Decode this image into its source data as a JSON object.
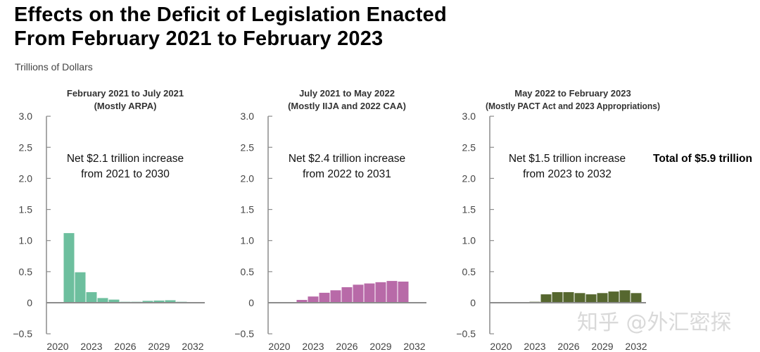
{
  "title_line1": "Effects on the Deficit of Legislation Enacted",
  "title_line2": "From February 2021 to February 2023",
  "units": "Trillions of Dollars",
  "watermark": "知乎 @外汇密探",
  "chart_data": [
    {
      "type": "bar",
      "title": "February 2021 to July 2021",
      "subtitle": "(Mostly ARPA)",
      "annotation_line1": "Net $2.1 trillion increase",
      "annotation_line2": "from 2021 to 2030",
      "color": "#6dbf9e",
      "ylabel": "Trillions of Dollars",
      "ylim": [
        -0.5,
        3.0
      ],
      "yticks": [
        3.0,
        2.5,
        2.0,
        1.5,
        1.0,
        0.5,
        0,
        -0.5
      ],
      "ytick_labels": [
        "3.0",
        "2.5",
        "2.0",
        "1.5",
        "1.0",
        "0.5",
        "0",
        "−0.5"
      ],
      "xlim": [
        2020,
        2032
      ],
      "xticks": [
        "2020",
        "2023",
        "2026",
        "2029",
        "2032"
      ],
      "x": [
        2021,
        2022,
        2023,
        2024,
        2025,
        2026,
        2027,
        2028,
        2029,
        2030,
        2031
      ],
      "values": [
        1.12,
        0.49,
        0.17,
        0.075,
        0.05,
        0.015,
        0.015,
        0.03,
        0.035,
        0.04,
        0.015
      ],
      "grid": false
    },
    {
      "type": "bar",
      "title": "July 2021 to May 2022",
      "subtitle": "(Mostly IIJA and 2022 CAA)",
      "annotation_line1": "Net $2.4 trillion increase",
      "annotation_line2": "from 2022 to 2031",
      "color": "#b86aa8",
      "ylabel": "Trillions of Dollars",
      "ylim": [
        -0.5,
        3.0
      ],
      "yticks": [
        3.0,
        2.5,
        2.0,
        1.5,
        1.0,
        0.5,
        0,
        -0.5
      ],
      "ytick_labels": [
        "3.0",
        "2.5",
        "2.0",
        "1.5",
        "1.0",
        "0.5",
        "0",
        "−0.5"
      ],
      "xlim": [
        2020,
        2032
      ],
      "xticks": [
        "2020",
        "2023",
        "2026",
        "2029",
        "2032"
      ],
      "x": [
        2022,
        2023,
        2024,
        2025,
        2026,
        2027,
        2028,
        2029,
        2030,
        2031
      ],
      "values": [
        0.045,
        0.1,
        0.16,
        0.2,
        0.25,
        0.29,
        0.31,
        0.33,
        0.35,
        0.34
      ],
      "grid": false
    },
    {
      "type": "bar",
      "title": "May 2022 to February 2023",
      "subtitle": "(Mostly PACT Act and 2023 Appropriations)",
      "annotation_line1": "Net $1.5 trillion increase",
      "annotation_line2": "from 2023 to 2032",
      "total_label": "Total of $5.9 trillion",
      "color": "#56672f",
      "ylabel": "Trillions of Dollars",
      "ylim": [
        -0.5,
        3.0
      ],
      "yticks": [
        3.0,
        2.5,
        2.0,
        1.5,
        1.0,
        0.5,
        0,
        -0.5
      ],
      "ytick_labels": [
        "3.0",
        "2.5",
        "2.0",
        "1.5",
        "1.0",
        "0.5",
        "0",
        "−0.5"
      ],
      "xlim": [
        2020,
        2032
      ],
      "xticks": [
        "2020",
        "2023",
        "2026",
        "2029",
        "2032"
      ],
      "x": [
        2023,
        2024,
        2025,
        2026,
        2027,
        2028,
        2029,
        2030,
        2031,
        2032
      ],
      "values": [
        0.015,
        0.135,
        0.17,
        0.17,
        0.155,
        0.135,
        0.155,
        0.18,
        0.2,
        0.155
      ],
      "grid": false
    }
  ]
}
